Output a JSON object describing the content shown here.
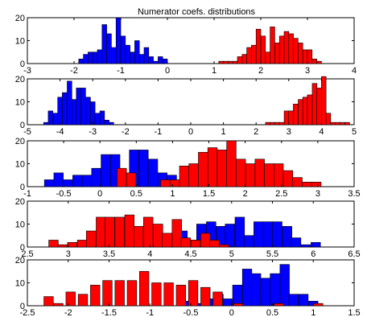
{
  "figure": {
    "title": "Numerator coefs. distributions"
  },
  "colors": {
    "blue": "#0000ff",
    "red": "#ff0000",
    "edge": "#000000"
  },
  "chart_data": [
    {
      "type": "bar",
      "title": "Numerator coefs. distributions",
      "xlim": [
        -3,
        4
      ],
      "ylim": [
        0,
        20
      ],
      "xticks": [
        "-3",
        "-2",
        "-1",
        "0",
        "1",
        "2",
        "3",
        "4"
      ],
      "yticks": [
        "0",
        "10",
        "20"
      ],
      "grid": false,
      "series": [
        {
          "name": "",
          "color": "blue",
          "width": 0.1,
          "x": [
            -1.85,
            -1.75,
            -1.65,
            -1.55,
            -1.45,
            -1.35,
            -1.25,
            -1.15,
            -1.05,
            -0.95,
            -0.85,
            -0.75,
            -0.65,
            -0.55,
            -0.45,
            -0.35,
            -0.25,
            -0.15,
            -0.05
          ],
          "values": [
            2,
            4,
            5,
            5,
            6,
            17,
            13,
            7,
            20,
            12,
            8,
            5,
            10,
            4,
            7,
            3,
            1,
            3,
            2
          ]
        },
        {
          "name": "",
          "color": "red",
          "width": 0.1,
          "x": [
            1.15,
            1.25,
            1.35,
            1.45,
            1.55,
            1.65,
            1.75,
            1.85,
            1.95,
            2.05,
            2.15,
            2.25,
            2.35,
            2.45,
            2.55,
            2.65,
            2.75,
            2.85,
            2.95,
            3.05,
            3.15,
            3.25
          ],
          "values": [
            1,
            1,
            1,
            1,
            3,
            4,
            7,
            8,
            15,
            12,
            5,
            16,
            9,
            12,
            14,
            13,
            11,
            9,
            6,
            6,
            2,
            1
          ]
        }
      ]
    },
    {
      "type": "bar",
      "xlim": [
        -5,
        5
      ],
      "ylim": [
        0,
        20
      ],
      "xticks": [
        "-5",
        "-4",
        "-3",
        "-2",
        "-1",
        "0",
        "1",
        "2",
        "3",
        "4",
        "5"
      ],
      "yticks": [
        "0",
        "10",
        "20"
      ],
      "grid": false,
      "series": [
        {
          "name": "",
          "color": "blue",
          "width": 0.143,
          "x": [
            -4.43,
            -4.29,
            -4.14,
            -4.0,
            -3.86,
            -3.71,
            -3.57,
            -3.43,
            -3.29,
            -3.14,
            -3.0,
            -2.86,
            -2.71,
            -2.57,
            -2.43
          ],
          "values": [
            1,
            6,
            5,
            12,
            14,
            19,
            11,
            16,
            16,
            12,
            10,
            5,
            6,
            2,
            1
          ]
        },
        {
          "name": "",
          "color": "red",
          "width": 0.143,
          "x": [
            2.36,
            2.5,
            2.64,
            2.79,
            2.93,
            3.07,
            3.21,
            3.36,
            3.5,
            3.64,
            3.79,
            3.93,
            4.07,
            4.21,
            4.36,
            4.5,
            4.64,
            4.79
          ],
          "values": [
            1,
            1,
            1,
            1,
            6,
            6,
            9,
            11,
            12,
            13,
            18,
            16,
            21,
            5,
            1,
            1,
            1,
            1
          ]
        }
      ]
    },
    {
      "type": "bar",
      "xlim": [
        -1,
        3.5
      ],
      "ylim": [
        0,
        20
      ],
      "xticks": [
        "-1",
        "-0.5",
        "0",
        "0.5",
        "1",
        "1.5",
        "2",
        "2.5",
        "3",
        "3.5"
      ],
      "yticks": [
        "0",
        "10",
        "20"
      ],
      "grid": false,
      "series": [
        {
          "name": "",
          "color": "blue",
          "width": 0.13,
          "x": [
            -0.7,
            -0.57,
            -0.44,
            -0.31,
            -0.18,
            -0.05,
            0.08,
            0.21,
            0.34,
            0.47,
            0.6,
            0.73,
            0.86,
            0.99,
            1.12
          ],
          "values": [
            3,
            6,
            3,
            5,
            5,
            8,
            14,
            14,
            2,
            16,
            16,
            12,
            6,
            5,
            2
          ]
        },
        {
          "name": "",
          "color": "red",
          "width": 0.13,
          "x": [
            0.3,
            0.43,
            0.9,
            1.03,
            1.16,
            1.29,
            1.42,
            1.55,
            1.68,
            1.81,
            1.94,
            2.07,
            2.2,
            2.33,
            2.46,
            2.59,
            2.72,
            2.85,
            2.98
          ],
          "values": [
            8,
            6,
            3,
            3,
            9,
            10,
            15,
            17,
            16,
            20,
            12,
            10,
            12,
            10,
            10,
            7,
            4,
            2,
            2
          ]
        }
      ]
    },
    {
      "type": "bar",
      "xlim": [
        2.5,
        6.5
      ],
      "ylim": [
        0,
        20
      ],
      "xticks": [
        "2.5",
        "3",
        "3.5",
        "4",
        "4.5",
        "5",
        "5.5",
        "6",
        "6.5"
      ],
      "yticks": [
        "0",
        "10",
        "20"
      ],
      "grid": false,
      "series": [
        {
          "name": "",
          "color": "blue",
          "width": 0.116,
          "x": [
            4.4,
            4.52,
            4.63,
            4.75,
            4.87,
            4.98,
            5.1,
            5.21,
            5.33,
            5.45,
            5.56,
            5.68,
            5.79,
            5.91,
            6.03
          ],
          "values": [
            7,
            3,
            10,
            11,
            9,
            10,
            13,
            5,
            11,
            11,
            11,
            9,
            4,
            1,
            2
          ]
        },
        {
          "name": "",
          "color": "red",
          "width": 0.116,
          "x": [
            2.82,
            2.93,
            3.05,
            3.17,
            3.28,
            3.4,
            3.51,
            3.63,
            3.75,
            3.86,
            3.98,
            4.1,
            4.21,
            4.33,
            4.44,
            4.56,
            4.68,
            4.79,
            4.91
          ],
          "values": [
            3,
            1,
            2,
            3,
            7,
            13,
            13,
            13,
            14,
            9,
            13,
            10,
            6,
            12,
            4,
            3,
            6,
            3,
            1
          ]
        }
      ]
    },
    {
      "type": "bar",
      "xlim": [
        -2.5,
        1.5
      ],
      "ylim": [
        0,
        20
      ],
      "xticks": [
        "-2.5",
        "-2",
        "-1.5",
        "-1",
        "-0.5",
        "0",
        "0.5",
        "1",
        "1.5"
      ],
      "yticks": [
        "0",
        "10",
        "20"
      ],
      "grid": false,
      "series": [
        {
          "name": "",
          "color": "blue",
          "width": 0.115,
          "x": [
            -0.51,
            -0.39,
            -0.28,
            -0.16,
            -0.05,
            0.07,
            0.19,
            0.3,
            0.42,
            0.53,
            0.65,
            0.76,
            0.88,
            1.0
          ],
          "values": [
            2,
            1,
            3,
            5,
            3,
            9,
            16,
            14,
            12,
            14,
            18,
            5,
            5,
            2
          ]
        },
        {
          "name": "",
          "color": "red",
          "width": 0.115,
          "x": [
            -2.24,
            -2.12,
            -1.97,
            -1.82,
            -1.67,
            -1.52,
            -1.37,
            -1.22,
            -1.07,
            -0.92,
            -0.77,
            -0.62,
            -0.47,
            -0.32,
            -0.17,
            0.08,
            0.58,
            1.06
          ],
          "values": [
            4,
            1,
            6,
            5,
            9,
            11,
            11,
            11,
            15,
            10,
            10,
            9,
            11,
            8,
            6,
            1,
            1,
            1
          ]
        }
      ]
    }
  ]
}
